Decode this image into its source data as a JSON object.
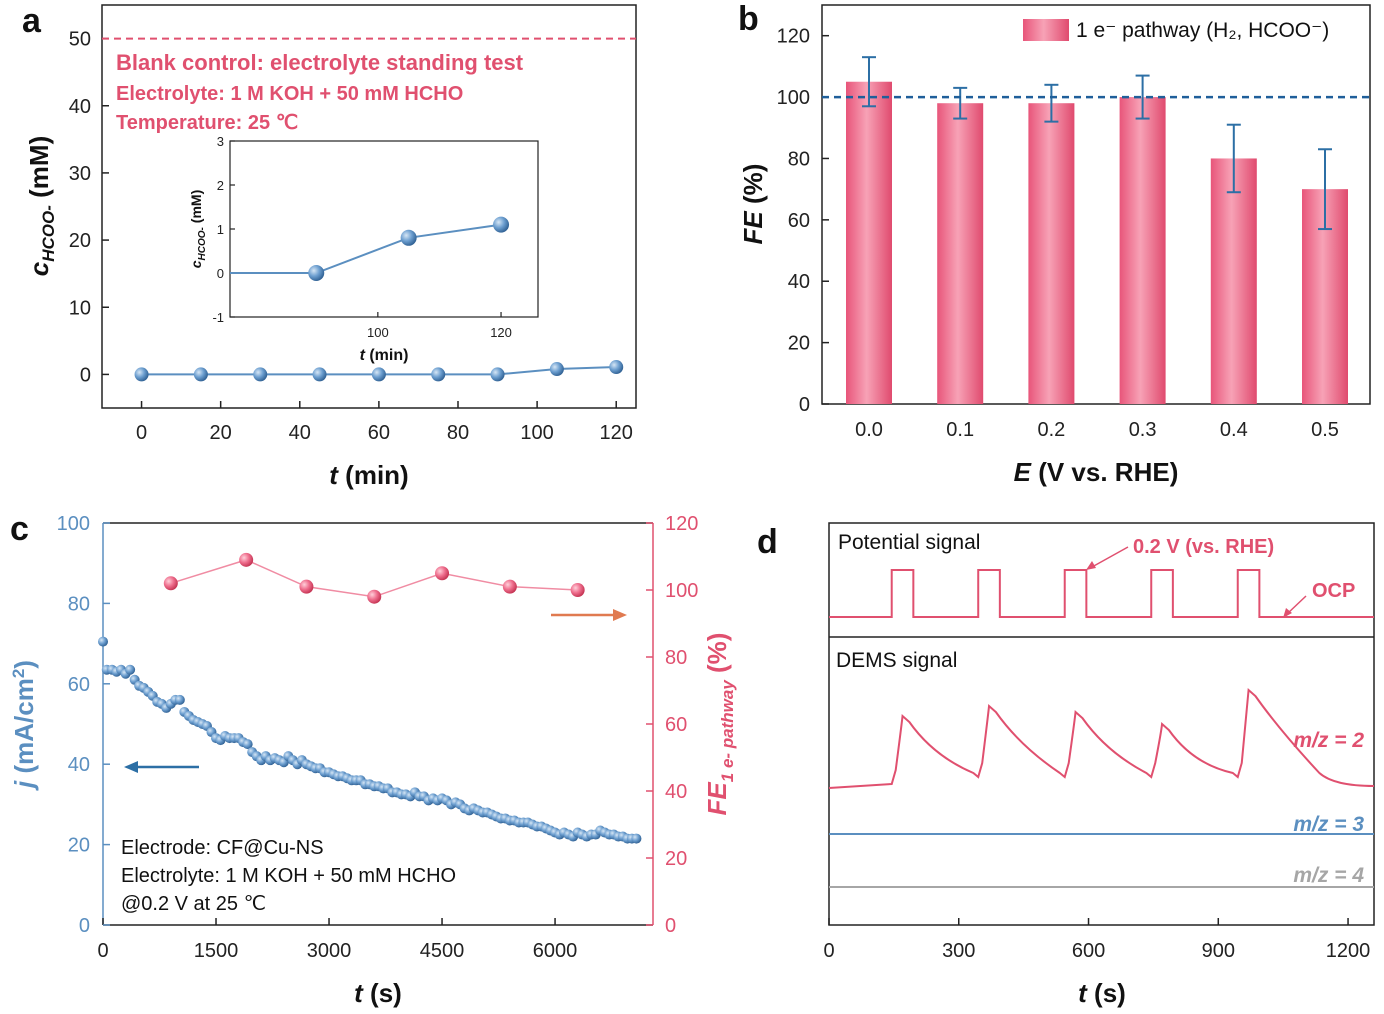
{
  "colors": {
    "pink": "#e0506f",
    "blue": "#2c6fa5",
    "steel": "#5b8fc0",
    "gray": "#a6a6a6",
    "dark": "#1a1a1a",
    "orange": "#e07a50",
    "dashblue": "#1f5f9a"
  },
  "chart_data": [
    {
      "panel": "a",
      "type": "line",
      "xlabel": "t (min)",
      "ylabel": "cHCOO- (mM)",
      "xlim": [
        -10,
        125
      ],
      "ylim": [
        -5,
        55
      ],
      "x_ticks": [
        0,
        20,
        40,
        60,
        80,
        100,
        120
      ],
      "y_ticks": [
        0,
        10,
        20,
        30,
        40,
        50
      ],
      "reference_line_y": 50,
      "annotations": [
        "Blank control: electrolyte standing test",
        "Electrolyte: 1 M KOH + 50 mM HCHO",
        "Temperature: 25 ℃"
      ],
      "x": [
        0,
        15,
        30,
        45,
        60,
        75,
        90,
        105,
        120
      ],
      "y": [
        0,
        0,
        0,
        0,
        0,
        0,
        0,
        0.8,
        1.1
      ],
      "inset": {
        "xlabel": "t (min)",
        "ylabel": "cHCOO- (mM)",
        "xlim": [
          76,
          126
        ],
        "ylim": [
          -1,
          3
        ],
        "x_ticks": [
          100,
          120
        ],
        "y_ticks": [
          -1,
          0,
          1,
          2,
          3
        ],
        "x": [
          90,
          105,
          120
        ],
        "y": [
          0,
          0.8,
          1.1
        ]
      }
    },
    {
      "panel": "b",
      "type": "bar",
      "xlabel": "E (V vs. RHE)",
      "ylabel": "FE (%)",
      "ylim": [
        0,
        130
      ],
      "y_ticks": [
        0,
        20,
        40,
        60,
        80,
        100,
        120
      ],
      "categories": [
        "0.0",
        "0.1",
        "0.2",
        "0.3",
        "0.4",
        "0.5"
      ],
      "values": [
        105,
        98,
        98,
        100,
        80,
        70
      ],
      "errors": [
        8,
        5,
        6,
        7,
        11,
        13
      ],
      "reference_line_y": 100,
      "legend": "1 e⁻ pathway (H₂, HCOO⁻)"
    },
    {
      "panel": "c",
      "type": "scatter",
      "xlabel": "t (s)",
      "ylabel_left": "j (mA/cm²)",
      "ylabel_right": "FE1 e- pathway (%)",
      "xlim": [
        0,
        7300
      ],
      "x_ticks": [
        0,
        1500,
        3000,
        4500,
        6000
      ],
      "ylim_left": [
        0,
        100
      ],
      "y_ticks_left": [
        0,
        20,
        40,
        60,
        80,
        100
      ],
      "ylim_right": [
        0,
        120
      ],
      "y_ticks_right": [
        0,
        20,
        40,
        60,
        80,
        100,
        120
      ],
      "annotations": [
        "Electrode: CF@Cu-NS",
        "Electrolyte: 1 M KOH + 50 mM HCHO",
        "@0.2 V at 25 ℃"
      ],
      "series": [
        {
          "name": "j",
          "axis": "left",
          "x": [
            0,
            50,
            120,
            180,
            240,
            300,
            360,
            420,
            480,
            540,
            600,
            660,
            720,
            780,
            840,
            900,
            960,
            1020,
            1080,
            1140,
            1200,
            1260,
            1320,
            1380,
            1440,
            1500,
            1560,
            1620,
            1680,
            1740,
            1800,
            1860,
            1920,
            1980,
            2040,
            2100,
            2160,
            2220,
            2280,
            2340,
            2400,
            2460,
            2520,
            2580,
            2640,
            2700,
            2760,
            2820,
            2880,
            2940,
            3000,
            3060,
            3120,
            3180,
            3240,
            3300,
            3360,
            3420,
            3480,
            3540,
            3600,
            3660,
            3720,
            3780,
            3840,
            3900,
            3960,
            4020,
            4080,
            4140,
            4200,
            4260,
            4320,
            4380,
            4440,
            4500,
            4560,
            4620,
            4680,
            4740,
            4800,
            4860,
            4920,
            4980,
            5040,
            5100,
            5160,
            5220,
            5280,
            5340,
            5400,
            5460,
            5520,
            5580,
            5640,
            5700,
            5760,
            5820,
            5880,
            5940,
            6000,
            6060,
            6120,
            6180,
            6240,
            6300,
            6360,
            6420,
            6480,
            6540,
            6600,
            6660,
            6720,
            6780,
            6840,
            6900,
            6960,
            7020,
            7080
          ],
          "y": [
            70.5,
            63.5,
            63.5,
            63,
            63.5,
            62.5,
            63.5,
            61,
            59.5,
            59,
            58,
            57,
            55.5,
            55,
            54,
            55,
            56,
            56,
            53,
            52,
            51,
            50.5,
            50,
            49.5,
            48,
            46.5,
            46,
            47,
            46.5,
            46.5,
            46.5,
            45.5,
            45,
            43,
            42,
            41,
            42,
            41,
            41.5,
            41,
            40.5,
            42,
            41,
            40,
            41,
            40,
            39.5,
            39,
            39,
            38,
            38,
            37.5,
            37,
            37,
            36.5,
            36,
            36,
            36,
            35,
            35,
            34.5,
            34.5,
            34,
            34,
            33,
            33,
            32.5,
            32.5,
            32,
            33,
            32,
            32,
            31,
            31.5,
            31,
            31.5,
            31,
            30,
            30.5,
            30,
            29,
            28.5,
            29,
            28.5,
            28,
            28,
            27.5,
            27,
            26.5,
            26.5,
            26,
            26,
            25.5,
            25.5,
            25.5,
            25,
            24.5,
            24.5,
            24,
            23.5,
            23,
            22.5,
            23,
            22.5,
            22,
            23,
            22.5,
            22,
            22.5,
            22.5,
            23.5,
            23,
            22.5,
            22.5,
            22,
            22,
            21.5,
            21.5,
            21.5
          ]
        },
        {
          "name": "FE",
          "axis": "right",
          "x": [
            900,
            1900,
            2700,
            3600,
            4500,
            5400,
            6300
          ],
          "y": [
            102,
            109,
            101,
            98,
            105,
            101,
            100
          ]
        }
      ]
    },
    {
      "panel": "d",
      "type": "line",
      "xlabel": "t (s)",
      "xlim": [
        0,
        1260
      ],
      "x_ticks": [
        0,
        300,
        600,
        900,
        1200
      ],
      "top_label": "Potential signal",
      "bottom_label": "DEMS signal",
      "pulse_label": "0.2 V (vs. RHE)",
      "ocp_label": "OCP",
      "pulses": [
        [
          145,
          195
        ],
        [
          345,
          395
        ],
        [
          545,
          595
        ],
        [
          745,
          795
        ],
        [
          945,
          995
        ]
      ],
      "series": [
        {
          "name": "m/z = 2"
        },
        {
          "name": "m/z = 3"
        },
        {
          "name": "m/z = 4"
        }
      ]
    }
  ]
}
